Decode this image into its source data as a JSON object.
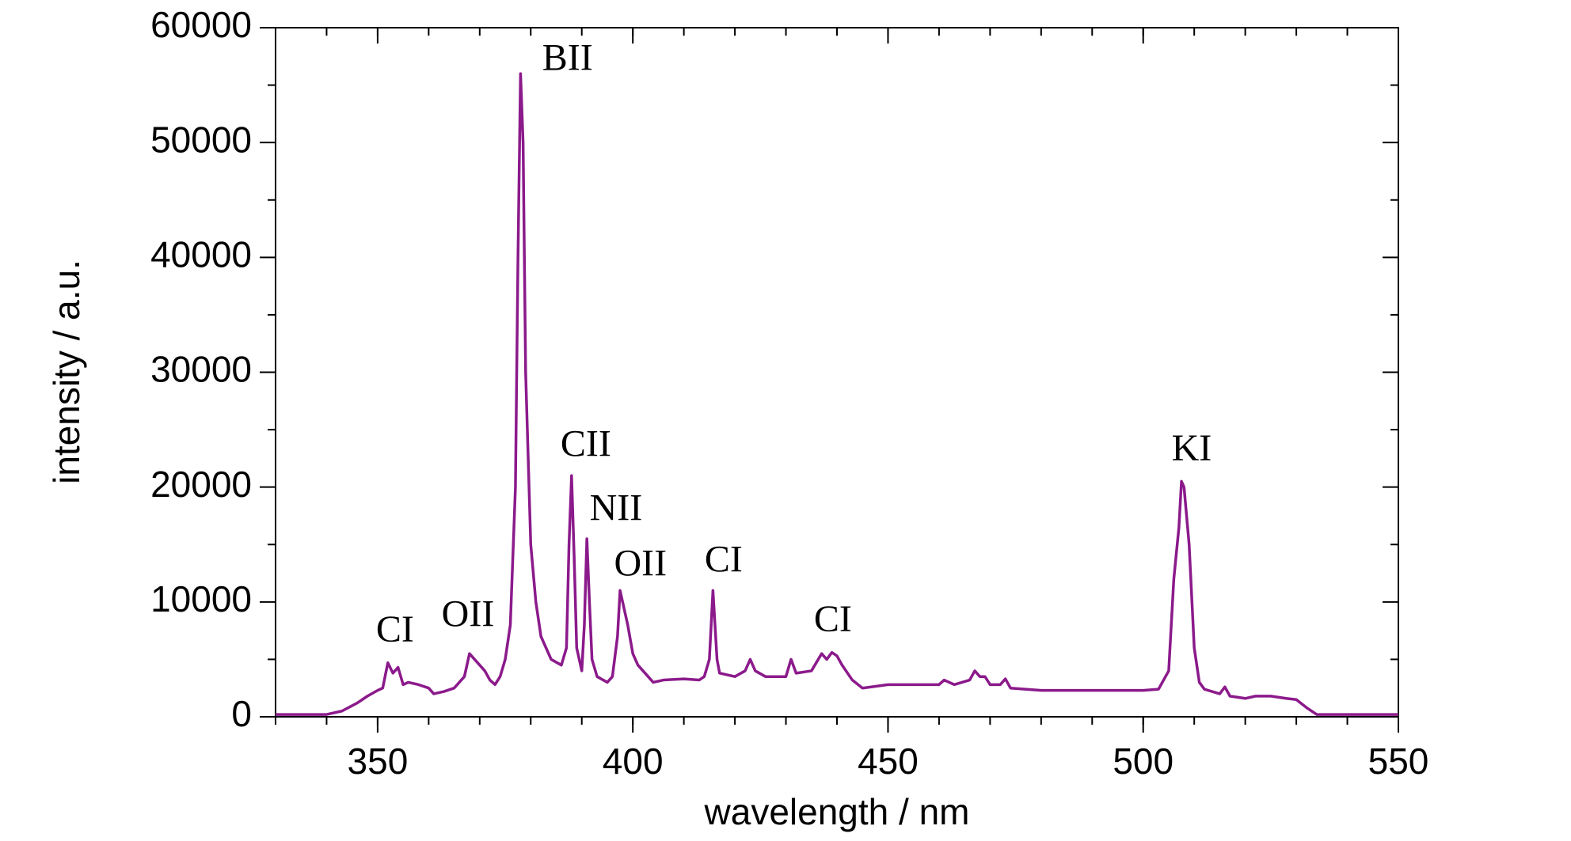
{
  "chart_data": {
    "type": "line",
    "xlabel": "wavelength / nm",
    "ylabel": "intensity / a.u.",
    "xlim": [
      330,
      550
    ],
    "ylim": [
      0,
      60000
    ],
    "xticks": [
      350,
      400,
      450,
      500,
      550
    ],
    "yticks": [
      0,
      10000,
      20000,
      30000,
      40000,
      50000,
      60000
    ],
    "grid": false,
    "series": [
      {
        "color": "#8b1a8b",
        "x": [
          330,
          340,
          343,
          346,
          348,
          350,
          351,
          352,
          353,
          354,
          355,
          356,
          358,
          360,
          361,
          363,
          365,
          367,
          368,
          369,
          370,
          371,
          372,
          373,
          374,
          375,
          376,
          377,
          377.5,
          378,
          378.5,
          379,
          380,
          381,
          382,
          384,
          386,
          387,
          387.5,
          388,
          388.5,
          389,
          390,
          390.5,
          391,
          391.5,
          392,
          393,
          395,
          396,
          397,
          397.5,
          398,
          399,
          400,
          401,
          402,
          403,
          404,
          406,
          410,
          413,
          414,
          415,
          415.7,
          416.5,
          417,
          420,
          422,
          423,
          424,
          426,
          430,
          431,
          432,
          435,
          437,
          438,
          439,
          440,
          441,
          443,
          445,
          450,
          455,
          460,
          461,
          463,
          466,
          467,
          468,
          469,
          470,
          472,
          473,
          474,
          480,
          490,
          500,
          503,
          505,
          506,
          507,
          507.5,
          508,
          509,
          510,
          511,
          512,
          515,
          516,
          517,
          520,
          522,
          525,
          528,
          530,
          532,
          534,
          550
        ],
        "values": [
          200,
          200,
          500,
          1200,
          1800,
          2300,
          2500,
          4700,
          3800,
          4300,
          2800,
          3000,
          2800,
          2500,
          2000,
          2200,
          2500,
          3500,
          5500,
          5000,
          4500,
          4000,
          3200,
          2800,
          3500,
          5000,
          8000,
          20000,
          40000,
          56000,
          50000,
          30000,
          15000,
          10000,
          7000,
          5000,
          4500,
          6000,
          15000,
          21000,
          14000,
          6000,
          4000,
          8000,
          15500,
          10000,
          5000,
          3500,
          3000,
          3500,
          7000,
          11000,
          10000,
          8000,
          5500,
          4500,
          4000,
          3500,
          3000,
          3200,
          3300,
          3200,
          3500,
          5000,
          11000,
          5000,
          3800,
          3500,
          4000,
          5000,
          4000,
          3500,
          3500,
          5000,
          3800,
          4000,
          5500,
          5000,
          5600,
          5300,
          4500,
          3200,
          2500,
          2800,
          2800,
          2800,
          3200,
          2800,
          3200,
          4000,
          3500,
          3500,
          2800,
          2800,
          3300,
          2500,
          2300,
          2300,
          2300,
          2400,
          4000,
          12000,
          16500,
          20500,
          20000,
          15000,
          6000,
          3000,
          2400,
          2000,
          2600,
          1800,
          1600,
          1800,
          1800,
          1600,
          1500,
          800,
          200,
          200
        ]
      }
    ],
    "annotations": [
      {
        "text": "CI",
        "x": 353.4,
        "y": 7300
      },
      {
        "text": "OII",
        "x": 367.7,
        "y": 8630
      },
      {
        "text": "BII",
        "x": 387.2,
        "y": 57090
      },
      {
        "text": "CII",
        "x": 390.8,
        "y": 23440
      },
      {
        "text": "NII",
        "x": 396.7,
        "y": 17890
      },
      {
        "text": "OII",
        "x": 401.5,
        "y": 13040
      },
      {
        "text": "CI",
        "x": 417.8,
        "y": 13390
      },
      {
        "text": "CI",
        "x": 439.2,
        "y": 8190
      },
      {
        "text": "KI",
        "x": 509.5,
        "y": 23080
      }
    ]
  }
}
